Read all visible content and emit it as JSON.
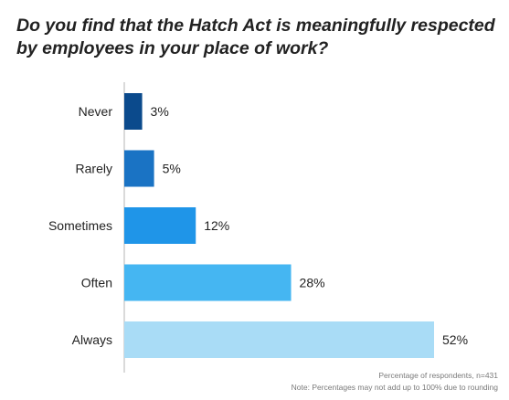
{
  "chart_data": {
    "type": "bar",
    "orientation": "horizontal",
    "title": "Do you find that the Hatch Act is meaningfully respected by employees in your place of work?",
    "categories": [
      "Never",
      "Rarely",
      "Sometimes",
      "Often",
      "Always"
    ],
    "values": [
      3,
      5,
      12,
      28,
      52
    ],
    "value_labels": [
      "3%",
      "5%",
      "12%",
      "28%",
      "52%"
    ],
    "colors": [
      "#0b4a8c",
      "#1a73c4",
      "#1f95e8",
      "#45b6f2",
      "#a9dcf6"
    ],
    "xlim": [
      0,
      52
    ],
    "grid": false,
    "notes": [
      "Percentage of respondents, n=431",
      "Note: Percentages may not add up to 100% due to rounding"
    ]
  }
}
